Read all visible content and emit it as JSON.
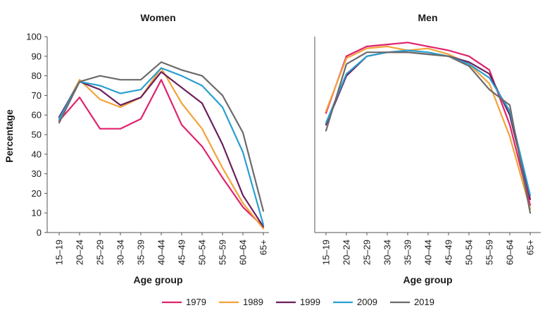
{
  "chart_data": [
    {
      "type": "line",
      "title": "Women",
      "xlabel": "Age group",
      "ylabel": "Percentage",
      "ylim": [
        0,
        100
      ],
      "yticks": [
        0,
        10,
        20,
        30,
        40,
        50,
        60,
        70,
        80,
        90,
        100
      ],
      "grid": false,
      "categories": [
        "15–19",
        "20–24",
        "25–29",
        "30–34",
        "35–39",
        "40–44",
        "45–49",
        "50–54",
        "55–59",
        "60–64",
        "65+"
      ],
      "series": [
        {
          "name": "1979",
          "color": "#e0226e",
          "values": [
            57,
            69,
            53,
            53,
            58,
            78,
            55,
            44,
            28,
            13,
            3
          ]
        },
        {
          "name": "1989",
          "color": "#f2a33a",
          "values": [
            58,
            78,
            68,
            64,
            69,
            84,
            66,
            53,
            33,
            15,
            2
          ]
        },
        {
          "name": "1999",
          "color": "#6b1f5c",
          "values": [
            59,
            77,
            73,
            65,
            69,
            82,
            74,
            66,
            45,
            19,
            3
          ]
        },
        {
          "name": "2009",
          "color": "#2a9fd0",
          "values": [
            58,
            77,
            75,
            71,
            73,
            84,
            80,
            75,
            64,
            41,
            4
          ]
        },
        {
          "name": "2019",
          "color": "#6b6b6b",
          "values": [
            56,
            77,
            80,
            78,
            78,
            87,
            83,
            80,
            70,
            51,
            11
          ]
        }
      ]
    },
    {
      "type": "line",
      "title": "Men",
      "xlabel": "Age group",
      "ylabel": "",
      "ylim": [
        0,
        100
      ],
      "grid": false,
      "categories": [
        "15–19",
        "20–24",
        "25–29",
        "30–34",
        "35–39",
        "40–44",
        "45–49",
        "50–54",
        "55–59",
        "60–64",
        "65+"
      ],
      "series": [
        {
          "name": "1979",
          "color": "#e0226e",
          "values": [
            61,
            90,
            95,
            96,
            97,
            95,
            93,
            90,
            83,
            55,
            14
          ]
        },
        {
          "name": "1989",
          "color": "#f2a33a",
          "values": [
            62,
            89,
            94,
            95,
            93,
            94,
            91,
            86,
            76,
            49,
            12
          ]
        },
        {
          "name": "1999",
          "color": "#6b1f5c",
          "values": [
            55,
            80,
            90,
            92,
            92,
            91,
            90,
            87,
            81,
            60,
            17
          ]
        },
        {
          "name": "2009",
          "color": "#2a9fd0",
          "values": [
            56,
            81,
            90,
            92,
            93,
            92,
            90,
            86,
            79,
            62,
            19
          ]
        },
        {
          "name": "2019",
          "color": "#6b6b6b",
          "values": [
            52,
            86,
            92,
            92,
            92,
            91,
            90,
            85,
            73,
            65,
            10
          ]
        }
      ]
    }
  ],
  "legend": {
    "placement": "bottom",
    "items": [
      {
        "label": "1979",
        "color": "#e0226e"
      },
      {
        "label": "1989",
        "color": "#f2a33a"
      },
      {
        "label": "1999",
        "color": "#6b1f5c"
      },
      {
        "label": "2009",
        "color": "#2a9fd0"
      },
      {
        "label": "2019",
        "color": "#6b6b6b"
      }
    ]
  }
}
